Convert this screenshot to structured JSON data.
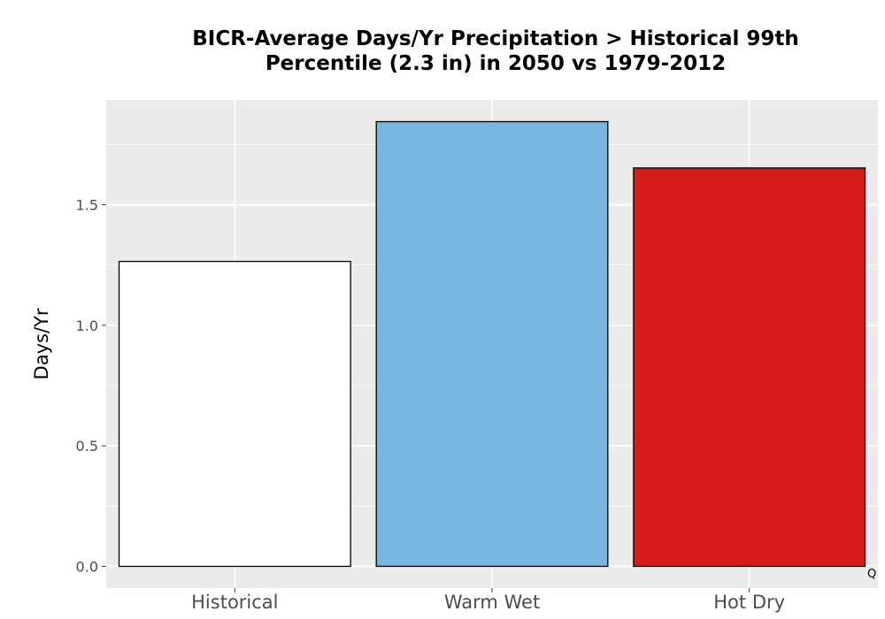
{
  "chart_data": {
    "type": "bar",
    "title_line1": "BICR-Average Days/Yr Precipitation > Historical 99th",
    "title_line2": "Percentile (2.3 in) in 2050 vs 1979-2012",
    "xlabel": "",
    "ylabel": "Days/Yr",
    "categories": [
      "Historical",
      "Warm Wet",
      "Hot Dry"
    ],
    "values": [
      1.265,
      1.845,
      1.653
    ],
    "bar_colors": [
      "#ffffff",
      "#78b7e0",
      "#d81b1b"
    ],
    "ylim": [
      -0.09,
      1.935
    ],
    "yticks": [
      0.0,
      0.5,
      1.0,
      1.5
    ],
    "ytick_labels": [
      "0.0",
      "0.5",
      "1.0",
      "1.5"
    ],
    "grid": true,
    "legend": "none",
    "corner_mark": "Q"
  }
}
